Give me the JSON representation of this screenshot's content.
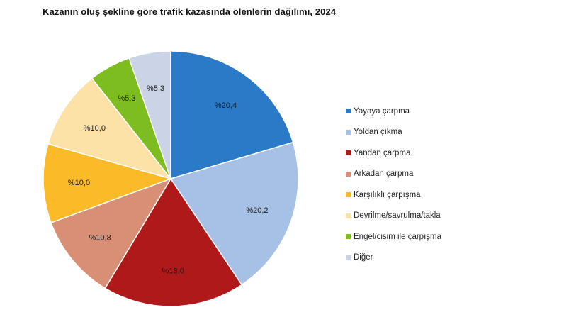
{
  "chart_data": {
    "type": "pie",
    "title": "Kazanın oluş şekline göre trafik kazasında ölenlerin dağılımı, 2024",
    "legend_position": "right",
    "slices": [
      {
        "name": "Yayaya çarpma",
        "value": 20.4,
        "label": "%20,4",
        "color": "#2a7ac7"
      },
      {
        "name": "Yoldan çıkma",
        "value": 20.2,
        "label": "%20,2",
        "color": "#a7c1e6"
      },
      {
        "name": "Yandan çarpma",
        "value": 18.0,
        "label": "%18,0",
        "color": "#b01919"
      },
      {
        "name": "Arkadan çarpma",
        "value": 10.8,
        "label": "%10,8",
        "color": "#d98f76"
      },
      {
        "name": "Karşılıklı çarpışma",
        "value": 10.0,
        "label": "%10,0",
        "color": "#fbbb28"
      },
      {
        "name": "Devrilme/savrulma/takla",
        "value": 10.0,
        "label": "%10,0",
        "color": "#fde2a8"
      },
      {
        "name": "Engel/cisim ile çarpışma",
        "value": 5.3,
        "label": "%5,3",
        "color": "#7dbd1f"
      },
      {
        "name": "Diğer",
        "value": 5.3,
        "label": "%5,3",
        "color": "#cad4e6"
      }
    ]
  }
}
